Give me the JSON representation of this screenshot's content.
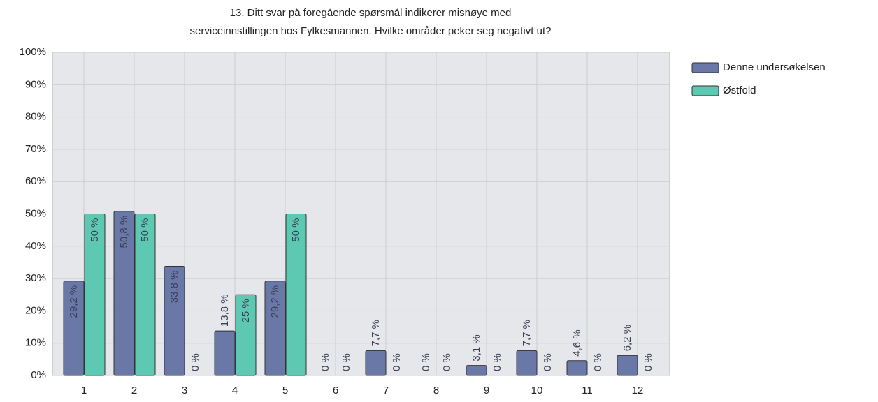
{
  "chart_data": {
    "type": "bar",
    "title": [
      "13. Ditt svar på foregående spørsmål indikerer misnøye med",
      "serviceinnstillingen hos Fylkesmannen. Hvilke områder peker seg negativt ut?"
    ],
    "categories": [
      "1",
      "2",
      "3",
      "4",
      "5",
      "6",
      "7",
      "8",
      "9",
      "10",
      "11",
      "12"
    ],
    "series": [
      {
        "name": "Denne undersøkelsen",
        "color": "#6a78a8",
        "values": [
          29.2,
          50.8,
          33.8,
          13.8,
          29.2,
          0,
          7.7,
          0,
          3.1,
          7.7,
          4.6,
          6.2
        ],
        "value_labels": [
          "29,2 %",
          "50,8 %",
          "33,8 %",
          "13,8 %",
          "29,2 %",
          "0 %",
          "7,7 %",
          "0 %",
          "3,1 %",
          "7,7 %",
          "4,6 %",
          "6,2 %"
        ]
      },
      {
        "name": "Østfold",
        "color": "#5ec9b2",
        "values": [
          50,
          50,
          0,
          25,
          50,
          0,
          0,
          0,
          0,
          0,
          0,
          0
        ],
        "value_labels": [
          "50 %",
          "50 %",
          "0 %",
          "25 %",
          "50 %",
          "0 %",
          "0 %",
          "0 %",
          "0 %",
          "0 %",
          "0 %",
          "0 %"
        ]
      }
    ],
    "ylim": [
      0,
      100
    ],
    "yticks": [
      {
        "value": 0,
        "label": "0%"
      },
      {
        "value": 10,
        "label": "10%"
      },
      {
        "value": 20,
        "label": "20%"
      },
      {
        "value": 30,
        "label": "30%"
      },
      {
        "value": 40,
        "label": "40%"
      },
      {
        "value": 50,
        "label": "50%"
      },
      {
        "value": 60,
        "label": "60%"
      },
      {
        "value": 70,
        "label": "70%"
      },
      {
        "value": 80,
        "label": "80%"
      },
      {
        "value": 90,
        "label": "90%"
      },
      {
        "value": 100,
        "label": "100%"
      }
    ],
    "grid": true,
    "legend": "top-right"
  }
}
